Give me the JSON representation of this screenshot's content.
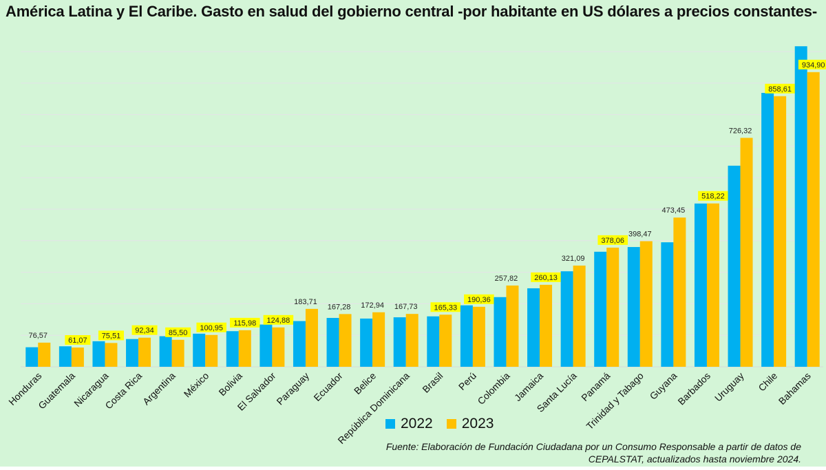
{
  "colors": {
    "background": "#d4f5d7",
    "series_2022": "#00b0f0",
    "series_2023": "#ffc000",
    "label_highlight": "#ffff00",
    "gridline": "#e4e4e8"
  },
  "chart_data": {
    "type": "bar",
    "title": "América Latina y El Caribe. Gasto en salud del gobierno central -por habitante en US dólares a precios constantes-",
    "xlabel": "",
    "ylabel": "",
    "ylim": [
      0,
      1000
    ],
    "grid": true,
    "legend_position": "bottom",
    "categories": [
      "Honduras",
      "Guatemala",
      "Nicaragua",
      "Costa Rica",
      "Argentina",
      "México",
      "Bolivia",
      "El Salvador",
      "Paraguay",
      "Ecuador",
      "Belice",
      "República Dominicana",
      "Brasil",
      "Perú",
      "Colombia",
      "Jamaica",
      "Santa Lucía",
      "Panamá",
      "Trinidad y Tabago",
      "Guyana",
      "Barbados",
      "Uruguay",
      "Chile",
      "Bahamas"
    ],
    "series": [
      {
        "name": "2022",
        "values": [
          62,
          65,
          81,
          88,
          97,
          105,
          113,
          134,
          145,
          155,
          153,
          157,
          160,
          195,
          221,
          249,
          303,
          365,
          380,
          395,
          518,
          638,
          869,
          1017
        ]
      },
      {
        "name": "2023",
        "values": [
          76.57,
          61.07,
          75.51,
          92.34,
          85.5,
          100.95,
          115.98,
          124.88,
          183.71,
          167.28,
          172.94,
          167.73,
          165.33,
          190.36,
          257.82,
          260.13,
          321.09,
          378.06,
          398.47,
          473.45,
          518.22,
          726.32,
          858.61,
          934.9
        ]
      }
    ],
    "data_labels_2023": [
      "76,57",
      "61,07",
      "75,51",
      "92,34",
      "85,50",
      "100,95",
      "115,98",
      "124,88",
      "183,71",
      "167,28",
      "172,94",
      "167,73",
      "165,33",
      "190,36",
      "257,82",
      "260,13",
      "321,09",
      "378,06",
      "398,47",
      "473,45",
      "518,22",
      "726,32",
      "858,61",
      "934,90"
    ],
    "highlighted_labels": [
      false,
      true,
      true,
      true,
      true,
      true,
      true,
      true,
      false,
      false,
      false,
      false,
      true,
      true,
      false,
      true,
      false,
      true,
      false,
      false,
      true,
      false,
      true,
      true
    ]
  },
  "source_text": "Fuente: Elaboración de Fundación Ciudadana por un Consumo Responsable a partir de datos de CEPALSTAT, actualizados hasta noviembre 2024."
}
